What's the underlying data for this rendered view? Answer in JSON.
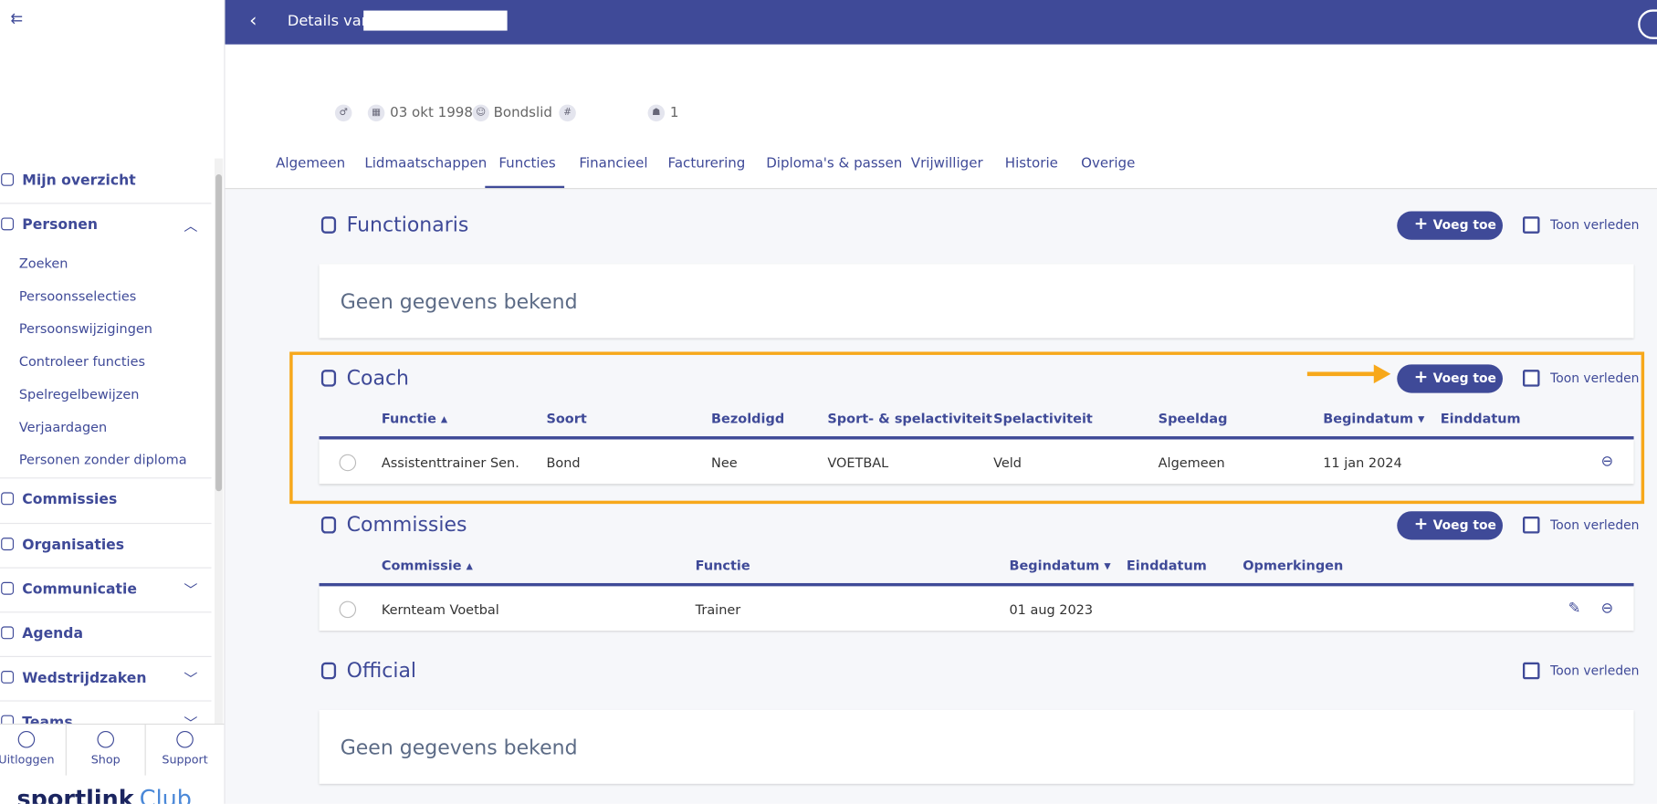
{
  "header": {
    "title": "Details van"
  },
  "profile": {
    "birthdate": "03 okt 1998",
    "membership": "Bondslid",
    "shirt": "1"
  },
  "tabs": [
    "Algemeen",
    "Lidmaatschappen",
    "Functies",
    "Financieel",
    "Facturering",
    "Diploma's & passen",
    "Vrijwilliger",
    "Historie",
    "Overige"
  ],
  "sidebar": {
    "items": [
      "Mijn overzicht",
      "Personen"
    ],
    "subitems": [
      "Zoeken",
      "Persoonsselecties",
      "Persoonswijzigingen",
      "Controleer functies",
      "Spelregelbewijzen",
      "Verjaardagen",
      "Personen zonder diploma"
    ],
    "more": [
      "Commissies",
      "Organisaties",
      "Communicatie",
      "Agenda",
      "Wedstrijdzaken",
      "Teams"
    ],
    "footer": [
      "Uitloggen",
      "Shop",
      "Support"
    ],
    "brand": "sportlink",
    "brand2": "Club"
  },
  "sections": [
    {
      "title": "Functionaris",
      "add": "Voeg toe",
      "past": "Toon verleden",
      "empty": "Geen gegevens bekend"
    },
    {
      "title": "Coach",
      "add": "Voeg toe",
      "past": "Toon verleden",
      "columns": [
        "Functie",
        "Soort",
        "Bezoldigd",
        "Sport- & spelactiviteit",
        "Spelactiviteit",
        "Speeldag",
        "Begindatum",
        "Einddatum"
      ],
      "rows": [
        [
          "Assistenttrainer Sen.",
          "Bond",
          "Nee",
          "VOETBAL",
          "Veld",
          "Algemeen",
          "11 jan 2024"
        ]
      ]
    },
    {
      "title": "Commissies",
      "add": "Voeg toe",
      "past": "Toon verleden",
      "columns": [
        "Commissie",
        "Functie",
        "Begindatum",
        "Einddatum",
        "Opmerkingen"
      ],
      "rows": [
        [
          "Kernteam Voetbal",
          "Trainer",
          "01 aug 2023"
        ]
      ]
    },
    {
      "title": "Official",
      "past": "Toon verleden",
      "empty": "Geen gegevens bekend"
    }
  ]
}
